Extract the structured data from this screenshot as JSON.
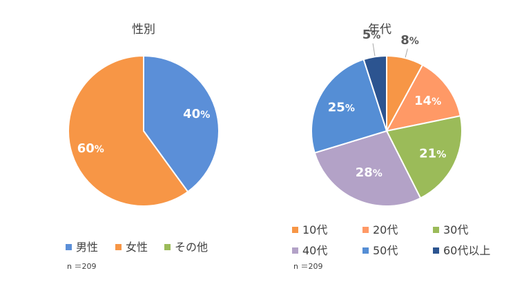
{
  "chart_data": [
    {
      "type": "pie",
      "title": "性別",
      "categories": [
        "男性",
        "女性",
        "その他"
      ],
      "values": [
        40,
        60,
        0
      ],
      "colors": [
        "#5b8fd8",
        "#f79646",
        "#9bbb59"
      ],
      "label_suffix": "%",
      "note": "n ＝209",
      "legend_position": "bottom"
    },
    {
      "type": "pie",
      "title": "年代",
      "categories": [
        "10代",
        "20代",
        "30代",
        "40代",
        "50代",
        "60代以上"
      ],
      "values": [
        8,
        14,
        21,
        28,
        25,
        5
      ],
      "colors": [
        "#f79646",
        "#ff9966",
        "#9bbb59",
        "#b3a2c7",
        "#558ed5",
        "#2c5490"
      ],
      "label_suffix": "%",
      "note": "n ＝209",
      "legend_position": "bottom"
    }
  ]
}
